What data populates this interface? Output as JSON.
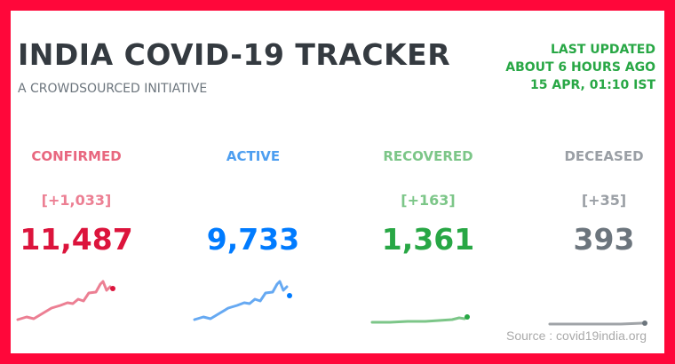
{
  "header": {
    "title": "INDIA COVID-19 TRACKER",
    "subtitle": "A CROWDSOURCED INITIATIVE"
  },
  "last_updated": {
    "label": "LAST UPDATED",
    "relative": "ABOUT 6 HOURS AGO",
    "timestamp": "15 APR, 01:10 IST"
  },
  "cards": [
    {
      "label": "CONFIRMED",
      "delta": "[+1,033]",
      "value": "11,487"
    },
    {
      "label": "ACTIVE",
      "value": "9,733"
    },
    {
      "label": "RECOVERED",
      "delta": "[+163]",
      "value": "1,361"
    },
    {
      "label": "DECEASED",
      "delta": "[+35]",
      "value": "393"
    }
  ],
  "source": "Source : covid19india.org"
}
